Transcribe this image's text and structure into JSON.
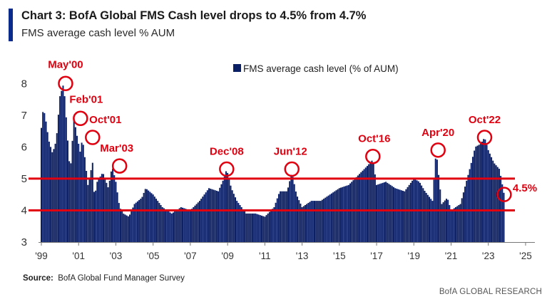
{
  "header": {
    "title": "Chart 3: BofA Global FMS Cash level drops to 4.5% from 4.7%",
    "subtitle": "FMS average cash level % AUM"
  },
  "footer": {
    "source_label": "Source:",
    "source_text": "BofA Global Fund Manager Survey",
    "brand": "BofA GLOBAL RESEARCH"
  },
  "colors": {
    "bar": "#0b1f66",
    "threshold": "#e0000f",
    "annotation": "#e0000f",
    "accent": "#0a2a8c"
  },
  "chart_data": {
    "type": "bar",
    "title": "Chart 3: BofA Global FMS Cash level drops to 4.5% from 4.7%",
    "subtitle": "FMS average cash level % AUM",
    "legend": {
      "label": "FMS average cash level (% of AUM)",
      "placement": "top-center"
    },
    "xlim": [
      1999,
      2025.5
    ],
    "xticks": [
      "'99",
      "'01",
      "'03",
      "'05",
      "'07",
      "'09",
      "'11",
      "'13",
      "'15",
      "'17",
      "'19",
      "'21",
      "'23",
      "'25"
    ],
    "xtick_values": [
      1999,
      2001,
      2003,
      2005,
      2007,
      2009,
      2011,
      2013,
      2015,
      2017,
      2019,
      2021,
      2023,
      2025
    ],
    "ylim": [
      3,
      8.5
    ],
    "yticks": [
      3,
      4,
      5,
      6,
      7,
      8
    ],
    "grid": false,
    "reference_lines": [
      4,
      5
    ],
    "series": [
      {
        "x": [
          1999.0,
          1999.1,
          1999.2,
          1999.4,
          1999.6,
          1999.8,
          2000.0,
          2000.2,
          2000.35,
          2000.45,
          2000.55,
          2000.75,
          2000.9,
          2001.1,
          2001.2,
          2001.35,
          2001.5,
          2001.75,
          2001.85,
          2002.0,
          2002.3,
          2002.6,
          2002.8,
          2003.0,
          2003.2,
          2003.4,
          2003.7,
          2004.0,
          2004.4,
          2004.6,
          2005.0,
          2005.5,
          2006.0,
          2006.5,
          2007.0,
          2007.5,
          2008.0,
          2008.5,
          2008.8,
          2008.95,
          2009.2,
          2009.5,
          2010.0,
          2010.5,
          2011.0,
          2011.5,
          2011.8,
          2012.2,
          2012.45,
          2012.7,
          2013.0,
          2013.5,
          2014.0,
          2014.5,
          2015.0,
          2015.5,
          2016.0,
          2016.5,
          2016.8,
          2017.0,
          2017.5,
          2018.0,
          2018.5,
          2019.0,
          2019.3,
          2019.6,
          2020.0,
          2020.2,
          2020.3,
          2020.5,
          2020.8,
          2021.0,
          2021.5,
          2022.0,
          2022.3,
          2022.6,
          2022.8,
          2023.0,
          2023.3,
          2023.6,
          2023.85
        ],
        "y": [
          6.6,
          7.2,
          7.0,
          6.2,
          5.8,
          6.2,
          7.6,
          8.0,
          6.8,
          5.9,
          5.2,
          6.9,
          6.4,
          5.8,
          6.3,
          5.6,
          4.8,
          5.5,
          4.4,
          4.9,
          5.2,
          4.7,
          5.4,
          4.9,
          4.1,
          3.9,
          3.8,
          4.2,
          4.4,
          4.7,
          4.5,
          4.1,
          3.9,
          4.1,
          4.0,
          4.3,
          4.7,
          4.6,
          5.0,
          5.3,
          4.7,
          4.3,
          3.9,
          3.9,
          3.8,
          4.1,
          4.6,
          4.6,
          5.2,
          4.5,
          4.1,
          4.3,
          4.3,
          4.5,
          4.7,
          4.8,
          5.1,
          5.4,
          5.6,
          4.8,
          4.9,
          4.7,
          4.6,
          5.0,
          4.9,
          4.6,
          4.3,
          5.9,
          5.3,
          4.2,
          4.4,
          4.0,
          4.2,
          5.3,
          6.0,
          6.1,
          6.3,
          5.9,
          5.5,
          5.3,
          4.5
        ],
        "note": "values estimated from visual"
      }
    ],
    "annotations": [
      {
        "label": "May'00",
        "x": 2000.3,
        "y": 8.0
      },
      {
        "label": "Feb'01",
        "x": 2001.1,
        "y": 6.9
      },
      {
        "label": "Oct'01",
        "x": 2001.75,
        "y": 6.3
      },
      {
        "label": "Mar'03",
        "x": 2003.2,
        "y": 5.4
      },
      {
        "label": "Dec'08",
        "x": 2008.95,
        "y": 5.3
      },
      {
        "label": "Jun'12",
        "x": 2012.45,
        "y": 5.3
      },
      {
        "label": "Oct'16",
        "x": 2016.8,
        "y": 5.7
      },
      {
        "label": "Apr'20",
        "x": 2020.3,
        "y": 5.9
      },
      {
        "label": "Oct'22",
        "x": 2022.8,
        "y": 6.3
      },
      {
        "label": "4.5%",
        "x": 2023.85,
        "y": 4.5
      }
    ]
  }
}
